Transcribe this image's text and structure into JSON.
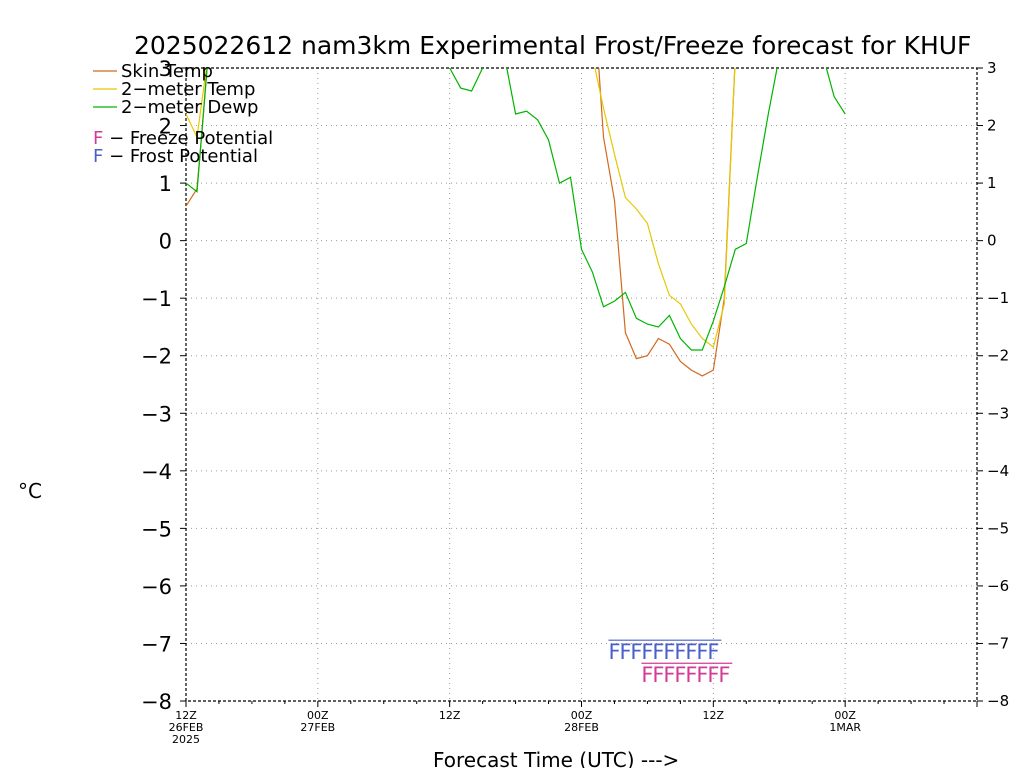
{
  "chart_data": {
    "type": "line",
    "title": "2025022612 nam3km Experimental Frost/Freeze forecast for KHUF",
    "xlabel": "Forecast Time (UTC) --->",
    "ylabel": "°C",
    "ylim": [
      -8,
      3
    ],
    "xlim": [
      0,
      72
    ],
    "grid": true,
    "legend_position": "top-left",
    "y_ticks": [
      3,
      2,
      1,
      0,
      -1,
      -2,
      -3,
      -4,
      -5,
      -6,
      -7,
      -8
    ],
    "y_tick_labels": [
      "3",
      "2",
      "1",
      "0",
      "−1",
      "−2",
      "−3",
      "−4",
      "−5",
      "−6",
      "−7",
      "−8"
    ],
    "x_ticks": [
      {
        "x": 0,
        "lines": [
          "12Z",
          "26FEB",
          "2025"
        ]
      },
      {
        "x": 12,
        "lines": [
          "00Z",
          "27FEB"
        ]
      },
      {
        "x": 24,
        "lines": [
          "12Z"
        ]
      },
      {
        "x": 36,
        "lines": [
          "00Z",
          "28FEB"
        ]
      },
      {
        "x": 48,
        "lines": [
          "12Z"
        ]
      },
      {
        "x": 60,
        "lines": [
          "00Z",
          "1MAR"
        ]
      }
    ],
    "series": [
      {
        "name": "Skin Temp",
        "color": "#d2691e",
        "x": [
          0,
          1,
          1.5,
          2,
          37.5,
          38,
          39,
          40,
          41,
          42,
          43,
          44,
          45,
          46,
          47,
          48,
          49,
          50
        ],
        "y": [
          0.6,
          0.9,
          2.0,
          3.2,
          3.2,
          1.8,
          0.7,
          -1.6,
          -2.05,
          -2.0,
          -1.7,
          -1.8,
          -2.1,
          -2.25,
          -2.35,
          -2.25,
          -1.0,
          3.2
        ]
      },
      {
        "name": "2-meter Temp",
        "color": "#e6c800",
        "x": [
          0,
          1,
          1.5,
          2,
          37,
          38,
          39,
          40,
          41,
          42,
          43,
          44,
          45,
          46,
          47,
          48,
          49,
          50
        ],
        "y": [
          2.2,
          1.8,
          2.5,
          3.2,
          3.2,
          2.3,
          1.5,
          0.75,
          0.55,
          0.3,
          -0.4,
          -0.95,
          -1.1,
          -1.45,
          -1.7,
          -1.85,
          -1.1,
          3.2
        ]
      },
      {
        "name": "2-meter Dewp",
        "color": "#00b400",
        "x": [
          0,
          1,
          2,
          22.5,
          23,
          24,
          25,
          26,
          27,
          28,
          29,
          30,
          31,
          32,
          33,
          34,
          35,
          36,
          37,
          38,
          39,
          40,
          41,
          42,
          43,
          44,
          45,
          46,
          47,
          48,
          49,
          50,
          51,
          52,
          53,
          54,
          55,
          56,
          57,
          58,
          59,
          60
        ],
        "y": [
          1.0,
          0.85,
          3.2,
          3.2,
          3.1,
          3.0,
          2.65,
          2.6,
          3.0,
          3.2,
          3.2,
          2.2,
          2.25,
          2.1,
          1.75,
          1.0,
          1.1,
          -0.15,
          -0.55,
          -1.15,
          -1.05,
          -0.9,
          -1.35,
          -1.45,
          -1.5,
          -1.3,
          -1.7,
          -1.9,
          -1.9,
          -1.4,
          -0.8,
          -0.15,
          -0.05,
          1.1,
          2.2,
          3.2,
          3.2,
          3.2,
          3.2,
          3.2,
          2.5,
          2.2
        ]
      }
    ],
    "legend": [
      {
        "label": "Skin Temp",
        "color": "#d2691e"
      },
      {
        "label": "2−meter Temp",
        "color": "#e6c800"
      },
      {
        "label": "2−meter Dewp",
        "color": "#00b400"
      }
    ],
    "potential_legend": [
      {
        "marker": "F",
        "label": " − Freeze Potential",
        "color": "#d23c96"
      },
      {
        "marker": "F",
        "label": " − Frost Potential",
        "color": "#4a5fc8"
      }
    ],
    "frost_potential": {
      "marker": "F",
      "color": "#4a5fc8",
      "y": -7.1,
      "hours": [
        39,
        40,
        41,
        42,
        43,
        44,
        45,
        46,
        47,
        48
      ]
    },
    "freeze_potential": {
      "marker": "F",
      "color": "#d23c96",
      "y": -7.5,
      "hours": [
        42,
        43,
        44,
        45,
        46,
        47,
        48,
        49
      ]
    }
  }
}
